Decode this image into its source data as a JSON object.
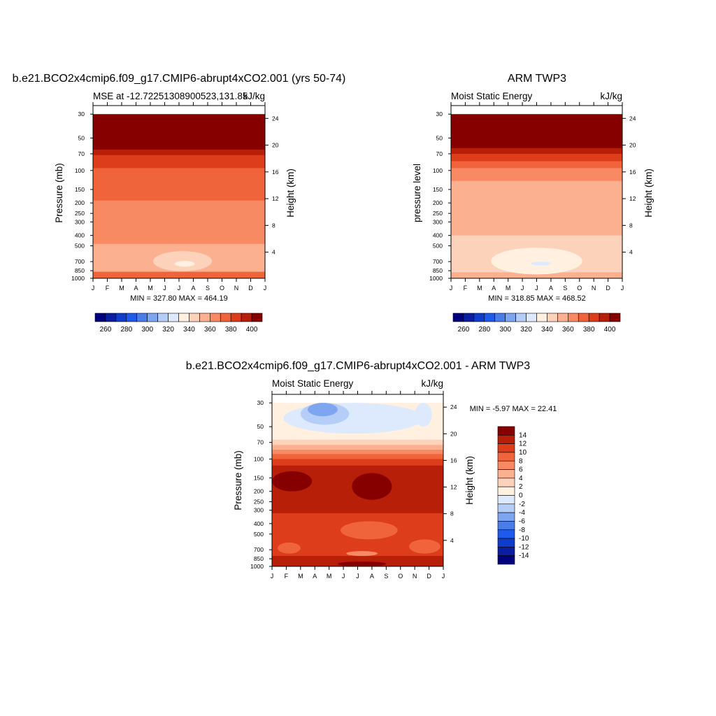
{
  "chart_data": [
    {
      "type": "heatmap",
      "title": "b.e21.BCO2x4cmip6.f09_g17.CMIP6-abrupt4xCO2.001 (yrs 50-74)",
      "left_label": "MSE at -12.72251308900523,131.85",
      "units": "kJ/kg",
      "ylabel": "Pressure (mb)",
      "ylabel_right": "Height (km)",
      "x_ticks": [
        "J",
        "F",
        "M",
        "A",
        "M",
        "J",
        "J",
        "A",
        "S",
        "O",
        "N",
        "D",
        "J"
      ],
      "y_ticks": [
        30,
        50,
        70,
        100,
        150,
        200,
        250,
        300,
        400,
        500,
        700,
        850,
        1000
      ],
      "y_ticks_right": [
        24,
        20,
        16,
        12,
        8,
        4
      ],
      "stats": "MIN = 327.80 MAX = 464.19",
      "colorbar_ticks": [
        260,
        280,
        300,
        320,
        340,
        360,
        380,
        400
      ],
      "bands": [
        {
          "p_top": 30,
          "p_bot": 58,
          "value": 410
        },
        {
          "p_top": 58,
          "p_bot": 64,
          "value": 400
        },
        {
          "p_top": 64,
          "p_bot": 72,
          "value": 390
        },
        {
          "p_top": 72,
          "p_bot": 95,
          "value": 380
        },
        {
          "p_top": 95,
          "p_bot": 190,
          "value": 370
        },
        {
          "p_top": 190,
          "p_bot": 480,
          "value": 360
        },
        {
          "p_top": 480,
          "p_bot": 870,
          "value": 350
        },
        {
          "p_top": 870,
          "p_bot": 1000,
          "value": 370
        }
      ],
      "blobs": [
        {
          "months": [
            4.2,
            8.3
          ],
          "p_range": [
            560,
            860
          ],
          "value": 340
        },
        {
          "months": [
            5.7,
            7.1
          ],
          "p_range": [
            690,
            780
          ],
          "value": 330
        }
      ]
    },
    {
      "type": "heatmap",
      "title": "ARM TWP3",
      "left_label": "Moist Static Energy",
      "units": "kJ/kg",
      "ylabel": "pressure level",
      "ylabel_right": "Height (km)",
      "x_ticks": [
        "J",
        "F",
        "M",
        "A",
        "M",
        "J",
        "J",
        "A",
        "S",
        "O",
        "N",
        "D",
        "J"
      ],
      "y_ticks": [
        30,
        50,
        70,
        100,
        150,
        200,
        250,
        300,
        400,
        500,
        700,
        850,
        1000
      ],
      "y_ticks_right": [
        24,
        20,
        16,
        12,
        8,
        4
      ],
      "stats": "MIN = 318.85 MAX = 468.52",
      "colorbar_ticks": [
        260,
        280,
        300,
        320,
        340,
        360,
        380,
        400
      ],
      "bands": [
        {
          "p_top": 30,
          "p_bot": 56,
          "value": 410
        },
        {
          "p_top": 56,
          "p_bot": 62,
          "value": 400
        },
        {
          "p_top": 62,
          "p_bot": 70,
          "value": 390
        },
        {
          "p_top": 70,
          "p_bot": 82,
          "value": 380
        },
        {
          "p_top": 82,
          "p_bot": 95,
          "value": 370
        },
        {
          "p_top": 95,
          "p_bot": 125,
          "value": 360
        },
        {
          "p_top": 125,
          "p_bot": 400,
          "value": 350
        },
        {
          "p_top": 400,
          "p_bot": 880,
          "value": 340
        },
        {
          "p_top": 880,
          "p_bot": 1000,
          "value": 350
        }
      ],
      "blobs": [
        {
          "months": [
            2.8,
            9.2
          ],
          "p_range": [
            520,
            920
          ],
          "value": 330
        },
        {
          "months": [
            5.6,
            7.0
          ],
          "p_range": [
            700,
            760
          ],
          "value": 320
        }
      ]
    },
    {
      "type": "heatmap",
      "title": "b.e21.BCO2x4cmip6.f09_g17.CMIP6-abrupt4xCO2.001 - ARM TWP3",
      "left_label": "Moist Static Energy",
      "units": "kJ/kg",
      "ylabel": "Pressure (mb)",
      "ylabel_right": "Height (km)",
      "x_ticks": [
        "J",
        "F",
        "M",
        "A",
        "M",
        "J",
        "J",
        "A",
        "S",
        "O",
        "N",
        "D",
        "J"
      ],
      "y_ticks": [
        30,
        50,
        70,
        100,
        150,
        200,
        250,
        300,
        400,
        500,
        700,
        850,
        1000
      ],
      "y_ticks_right": [
        24,
        20,
        16,
        12,
        8,
        4
      ],
      "stats": "MIN =  -5.97 MAX =  22.41",
      "colorbar_ticks": [
        14,
        12,
        10,
        8,
        6,
        4,
        2,
        0,
        -2,
        -4,
        -6,
        -8,
        -10,
        -12,
        -14
      ],
      "bands": [
        {
          "p_top": 30,
          "p_bot": 66,
          "value": 1
        },
        {
          "p_top": 66,
          "p_bot": 74,
          "value": 3
        },
        {
          "p_top": 74,
          "p_bot": 82,
          "value": 5
        },
        {
          "p_top": 82,
          "p_bot": 90,
          "value": 7
        },
        {
          "p_top": 90,
          "p_bot": 100,
          "value": 9
        },
        {
          "p_top": 100,
          "p_bot": 115,
          "value": 11
        },
        {
          "p_top": 115,
          "p_bot": 320,
          "value": 13
        },
        {
          "p_top": 320,
          "p_bot": 800,
          "value": 11
        },
        {
          "p_top": 800,
          "p_bot": 1000,
          "value": 13
        }
      ],
      "blobs": [
        {
          "months": [
            0.8,
            10.6
          ],
          "p_range": [
            30,
            58
          ],
          "value": -1
        },
        {
          "months": [
            2.0,
            5.4
          ],
          "p_range": [
            30,
            48
          ],
          "value": -3
        },
        {
          "months": [
            2.5,
            4.6
          ],
          "p_range": [
            30,
            40
          ],
          "value": -5
        },
        {
          "months": [
            10.0,
            11.2
          ],
          "p_range": [
            30,
            50
          ],
          "value": -1
        },
        {
          "months": [
            0.0,
            2.8
          ],
          "p_range": [
            130,
            200
          ],
          "value": 15
        },
        {
          "months": [
            5.6,
            8.4
          ],
          "p_range": [
            135,
            240
          ],
          "value": 15
        },
        {
          "months": [
            4.8,
            8.8
          ],
          "p_range": [
            380,
            560
          ],
          "value": 9
        },
        {
          "months": [
            0.4,
            2.0
          ],
          "p_range": [
            600,
            760
          ],
          "value": 9
        },
        {
          "months": [
            9.6,
            11.8
          ],
          "p_range": [
            560,
            760
          ],
          "value": 9
        },
        {
          "months": [
            5.2,
            7.4
          ],
          "p_range": [
            720,
            800
          ],
          "value": 7
        },
        {
          "months": [
            4.6,
            8.0
          ],
          "p_range": [
            900,
            1000
          ],
          "value": 15
        }
      ]
    }
  ]
}
